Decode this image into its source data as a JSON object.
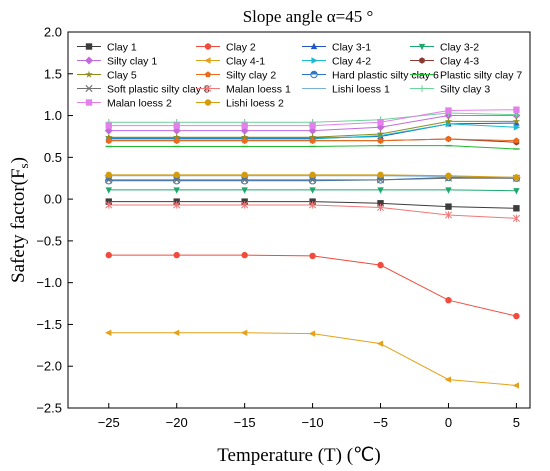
{
  "chart_data": {
    "type": "line",
    "title": "Slope angle α=45 °",
    "xlabel": "Temperature (T) (℃)",
    "ylabel": "Safety factor(F",
    "ylabel_sub": "s",
    "ylabel_end": ")",
    "x": [
      -25,
      -20,
      -15,
      -10,
      -5,
      0,
      5
    ],
    "xlim": [
      -28,
      6
    ],
    "ylim": [
      -2.5,
      2.0
    ],
    "xticks": [
      "−25",
      "−20",
      "−15",
      "−10",
      "−5",
      "0",
      "5"
    ],
    "yticks": [
      "−2.5",
      "−2.0",
      "−1.5",
      "−1.0",
      "−0.5",
      "0.0",
      "0.5",
      "1.0",
      "1.5",
      "2.0"
    ],
    "legend_position": "top (inside plot, 4 columns)",
    "grid": false,
    "series": [
      {
        "name": "Clay 1",
        "color": "#3c3c3c",
        "marker": "square",
        "values": [
          -0.03,
          -0.03,
          -0.03,
          -0.03,
          -0.05,
          -0.09,
          -0.11
        ]
      },
      {
        "name": "Clay 2",
        "color": "#f04b3c",
        "marker": "circle",
        "values": [
          -0.67,
          -0.67,
          -0.67,
          -0.68,
          -0.79,
          -1.21,
          -1.4
        ]
      },
      {
        "name": "Clay 3-1",
        "color": "#2255c8",
        "marker": "triangle-up",
        "values": [
          0.73,
          0.73,
          0.73,
          0.73,
          0.75,
          0.9,
          0.91
        ]
      },
      {
        "name": "Clay 3-2",
        "color": "#1fa86e",
        "marker": "triangle-down",
        "values": [
          0.11,
          0.11,
          0.11,
          0.11,
          0.11,
          0.11,
          0.1
        ]
      },
      {
        "name": "Silty clay 1",
        "color": "#c46adc",
        "marker": "diamond",
        "values": [
          0.82,
          0.82,
          0.82,
          0.82,
          0.86,
          1.0,
          1.0
        ]
      },
      {
        "name": "Clay 4-1",
        "color": "#e3a21a",
        "marker": "triangle-left",
        "values": [
          -1.6,
          -1.6,
          -1.6,
          -1.61,
          -1.73,
          -2.16,
          -2.23
        ]
      },
      {
        "name": "Clay 4-2",
        "color": "#17bcd0",
        "marker": "triangle-right",
        "values": [
          0.72,
          0.72,
          0.72,
          0.72,
          0.76,
          0.9,
          0.86
        ]
      },
      {
        "name": "Clay 4-3",
        "color": "#8b3a32",
        "marker": "hexagon",
        "values": [
          0.7,
          0.7,
          0.7,
          0.7,
          0.7,
          0.72,
          0.68
        ]
      },
      {
        "name": "Clay 5",
        "color": "#8c8c1e",
        "marker": "star",
        "values": [
          0.74,
          0.74,
          0.74,
          0.74,
          0.78,
          0.93,
          0.93
        ]
      },
      {
        "name": "Silty clay 2",
        "color": "#ec6a1a",
        "marker": "pentagon",
        "values": [
          0.7,
          0.7,
          0.7,
          0.7,
          0.7,
          0.72,
          0.7
        ]
      },
      {
        "name": "Hard plastic silty clay 6",
        "color": "#2a78c8",
        "marker": "half-circle",
        "values": [
          0.22,
          0.22,
          0.22,
          0.22,
          0.23,
          0.26,
          0.25
        ]
      },
      {
        "name": "Plastic silty clay 7",
        "color": "#22b830",
        "marker": "dash",
        "values": [
          0.63,
          0.63,
          0.63,
          0.63,
          0.64,
          0.64,
          0.6
        ]
      },
      {
        "name": "Soft plastic silty clay 8",
        "color": "#707070",
        "marker": "x",
        "values": [
          0.23,
          0.23,
          0.23,
          0.23,
          0.23,
          0.25,
          0.25
        ]
      },
      {
        "name": "Malan loess 1",
        "color": "#f07878",
        "marker": "asterisk",
        "values": [
          -0.07,
          -0.07,
          -0.07,
          -0.07,
          -0.1,
          -0.19,
          -0.23
        ]
      },
      {
        "name": "Lishi loess 1",
        "color": "#7aaedc",
        "marker": "line",
        "values": [
          0.28,
          0.28,
          0.28,
          0.28,
          0.28,
          0.27,
          0.26
        ]
      },
      {
        "name": "Silty clay 3",
        "color": "#6ad49a",
        "marker": "plus",
        "values": [
          0.92,
          0.92,
          0.92,
          0.92,
          0.95,
          1.03,
          1.01
        ]
      },
      {
        "name": "Malan loess 2",
        "color": "#e480ec",
        "marker": "square",
        "values": [
          0.88,
          0.88,
          0.88,
          0.88,
          0.92,
          1.06,
          1.07
        ]
      },
      {
        "name": "Lishi loess 2",
        "color": "#d49b0c",
        "marker": "circle",
        "values": [
          0.29,
          0.29,
          0.29,
          0.29,
          0.29,
          0.28,
          0.26
        ]
      }
    ]
  }
}
